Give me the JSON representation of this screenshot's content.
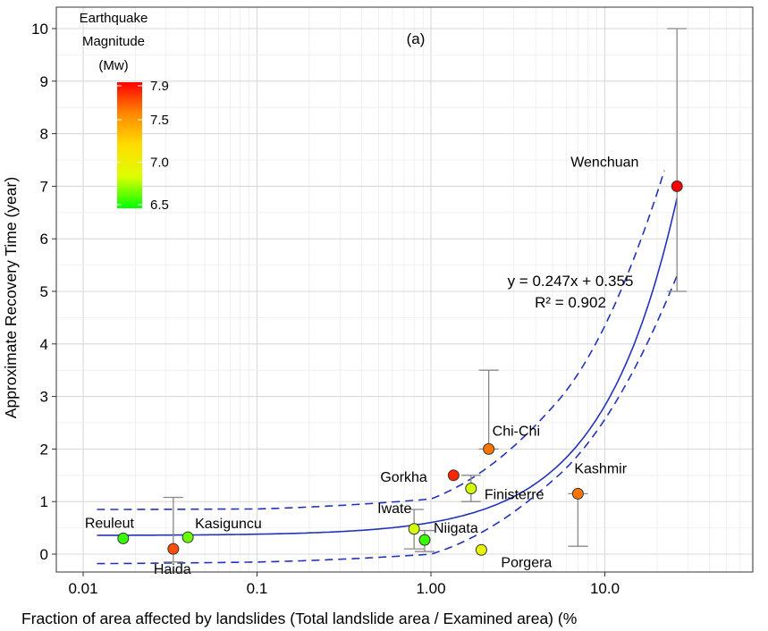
{
  "chart_data": {
    "type": "scatter",
    "panel_label": "(a)",
    "xlabel": "Fraction of area affected by landslides (Total landslide area / Examined area) (%",
    "ylabel": "Approximate Recovery Time (year)",
    "x_scale": "log",
    "xlim": [
      0.01,
      40
    ],
    "ylim": [
      -0.3,
      10.3
    ],
    "x_ticks": [
      0.01,
      0.1,
      1.0,
      10.0
    ],
    "x_tick_labels": [
      "0.01",
      "0.1",
      "1.00",
      "10.0"
    ],
    "y_ticks": [
      0,
      1,
      2,
      3,
      4,
      5,
      6,
      7,
      8,
      9,
      10
    ],
    "y_tick_labels": [
      "0",
      "1",
      "2",
      "3",
      "4",
      "5",
      "6",
      "7",
      "8",
      "9",
      "10"
    ],
    "grid": true,
    "legend": {
      "title_lines": [
        "Earthquake",
        "Magnitude",
        "(Mw)"
      ],
      "tick_labels": [
        "7.9",
        "7.5",
        "7.0",
        "6.5"
      ],
      "tick_values": [
        7.9,
        7.5,
        7.0,
        6.5
      ],
      "range": [
        6.5,
        7.9
      ],
      "colors": [
        "#ff0000",
        "#ff8800",
        "#ffdd00",
        "#ddff00",
        "#00ff00"
      ],
      "placement": "top-left"
    },
    "points": [
      {
        "name": "Reuleut",
        "x": 0.017,
        "y": 0.3,
        "mw": 6.6
      },
      {
        "name": "Haida",
        "x": 0.033,
        "y": 0.1,
        "mw": 7.7,
        "err_low": -0.15,
        "err_high": 1.08
      },
      {
        "name": "Kasiguncu",
        "x": 0.04,
        "y": 0.32,
        "mw": 6.7
      },
      {
        "name": "Iwate",
        "x": 0.8,
        "y": 0.48,
        "mw": 6.9,
        "err_low": 0.1,
        "err_high": 0.85
      },
      {
        "name": "Niigata",
        "x": 0.92,
        "y": 0.27,
        "mw": 6.6,
        "err_low": 0.05,
        "err_high": 0.45
      },
      {
        "name": "Gorkha",
        "x": 1.35,
        "y": 1.5,
        "mw": 7.8
      },
      {
        "name": "Finisterre",
        "x": 1.7,
        "y": 1.25,
        "mw": 6.9,
        "err_low": 1.0,
        "err_high": 1.5
      },
      {
        "name": "Porgera",
        "x": 1.95,
        "y": 0.08,
        "mw": 7.0
      },
      {
        "name": "Chi-Chi",
        "x": 2.15,
        "y": 2.0,
        "mw": 7.6,
        "err_low": 2.0,
        "err_high": 3.5
      },
      {
        "name": "Kashmir",
        "x": 7.0,
        "y": 1.15,
        "mw": 7.6,
        "err_low": 0.15,
        "err_high": 1.15
      },
      {
        "name": "Wenchuan",
        "x": 26.0,
        "y": 7.0,
        "mw": 7.9,
        "err_low": 5.0,
        "err_high": 10.0
      }
    ],
    "fit": {
      "equation": "y = 0.247x + 0.355",
      "r2": "R² = 0.902",
      "slope": 0.247,
      "intercept": 0.355,
      "band_upper": [
        [
          0.012,
          0.85
        ],
        [
          0.1,
          0.86
        ],
        [
          1.0,
          1.05
        ],
        [
          5.0,
          2.8
        ],
        [
          22.0,
          7.3
        ]
      ],
      "band_lower": [
        [
          0.012,
          -0.18
        ],
        [
          0.1,
          -0.15
        ],
        [
          1.0,
          0.0
        ],
        [
          5.0,
          1.4
        ],
        [
          26.0,
          5.3
        ]
      ],
      "band_upper_end": [
        26.0,
        7.3
      ],
      "line_color": "#2233bb"
    }
  }
}
